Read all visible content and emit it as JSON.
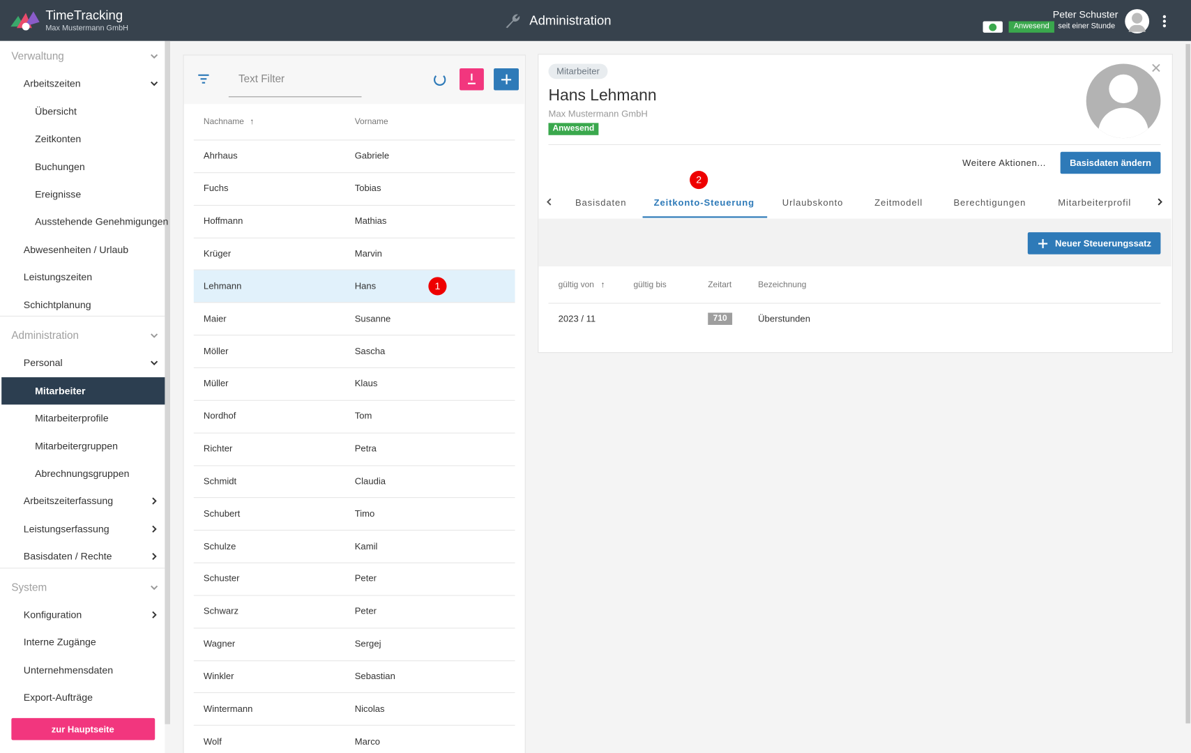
{
  "header": {
    "app_name": "TimeTracking",
    "company": "Max Mustermann GmbH",
    "page_title": "Administration",
    "user_name": "Peter Schuster",
    "status": "Anwesend",
    "status_since": "seit einer Stunde"
  },
  "sidebar": {
    "items": [
      {
        "label": "Verwaltung",
        "kind": "section",
        "chevron": "down"
      },
      {
        "label": "Arbeitszeiten",
        "kind": "group",
        "chevron": "down"
      },
      {
        "label": "Übersicht",
        "kind": "item"
      },
      {
        "label": "Zeitkonten",
        "kind": "item"
      },
      {
        "label": "Buchungen",
        "kind": "item"
      },
      {
        "label": "Ereignisse",
        "kind": "item"
      },
      {
        "label": "Ausstehende Genehmigungen",
        "kind": "item"
      },
      {
        "label": "Abwesenheiten / Urlaub",
        "kind": "group"
      },
      {
        "label": "Leistungszeiten",
        "kind": "group"
      },
      {
        "label": "Schichtplanung",
        "kind": "group"
      },
      {
        "label": "Administration",
        "kind": "section",
        "chevron": "down"
      },
      {
        "label": "Personal",
        "kind": "group",
        "chevron": "down"
      },
      {
        "label": "Mitarbeiter",
        "kind": "item",
        "active": true
      },
      {
        "label": "Mitarbeiterprofile",
        "kind": "item"
      },
      {
        "label": "Mitarbeitergruppen",
        "kind": "item"
      },
      {
        "label": "Abrechnungsgruppen",
        "kind": "item"
      },
      {
        "label": "Arbeitszeiterfassung",
        "kind": "group",
        "chevron": "right"
      },
      {
        "label": "Leistungserfassung",
        "kind": "group",
        "chevron": "right"
      },
      {
        "label": "Basisdaten / Rechte",
        "kind": "group",
        "chevron": "right"
      },
      {
        "label": "System",
        "kind": "section",
        "chevron": "down"
      },
      {
        "label": "Konfiguration",
        "kind": "group",
        "chevron": "right"
      },
      {
        "label": "Interne Zugänge",
        "kind": "group"
      },
      {
        "label": "Unternehmensdaten",
        "kind": "group"
      },
      {
        "label": "Export-Aufträge",
        "kind": "group"
      }
    ],
    "button": "zur Hauptseite"
  },
  "list": {
    "filter_placeholder": "Text Filter",
    "columns": [
      "Nachname",
      "Vorname"
    ],
    "rows": [
      [
        "Ahrhaus",
        "Gabriele"
      ],
      [
        "Fuchs",
        "Tobias"
      ],
      [
        "Hoffmann",
        "Mathias"
      ],
      [
        "Krüger",
        "Marvin"
      ],
      [
        "Lehmann",
        "Hans"
      ],
      [
        "Maier",
        "Susanne"
      ],
      [
        "Möller",
        "Sascha"
      ],
      [
        "Müller",
        "Klaus"
      ],
      [
        "Nordhof",
        "Tom"
      ],
      [
        "Richter",
        "Petra"
      ],
      [
        "Schmidt",
        "Claudia"
      ],
      [
        "Schubert",
        "Timo"
      ],
      [
        "Schulze",
        "Kamil"
      ],
      [
        "Schuster",
        "Peter"
      ],
      [
        "Schwarz",
        "Peter"
      ],
      [
        "Wagner",
        "Sergej"
      ],
      [
        "Winkler",
        "Sebastian"
      ],
      [
        "Wintermann",
        "Nicolas"
      ],
      [
        "Wolf",
        "Marco"
      ]
    ],
    "selected_row": 4,
    "marker": "1"
  },
  "detail": {
    "badge": "Mitarbeiter",
    "name": "Hans Lehmann",
    "company": "Max Mustermann GmbH",
    "status": "Anwesend",
    "more_actions": "Weitere Aktionen...",
    "edit_button": "Basisdaten ändern",
    "tabs": [
      "Basisdaten",
      "Zeitkonto-Steuerung",
      "Urlaubskonto",
      "Zeitmodell",
      "Berechtigungen",
      "Mitarbeiterprofil"
    ],
    "active_tab": 1,
    "marker": "2",
    "new_button": "Neuer Steuerungssatz",
    "table": {
      "columns": [
        "gültig von",
        "gültig bis",
        "Zeitart",
        "Bezeichnung"
      ],
      "rows": [
        {
          "gueltig_von": "2023 / 11",
          "zeitart": "710",
          "bezeichnung": "Überstunden"
        }
      ]
    }
  }
}
